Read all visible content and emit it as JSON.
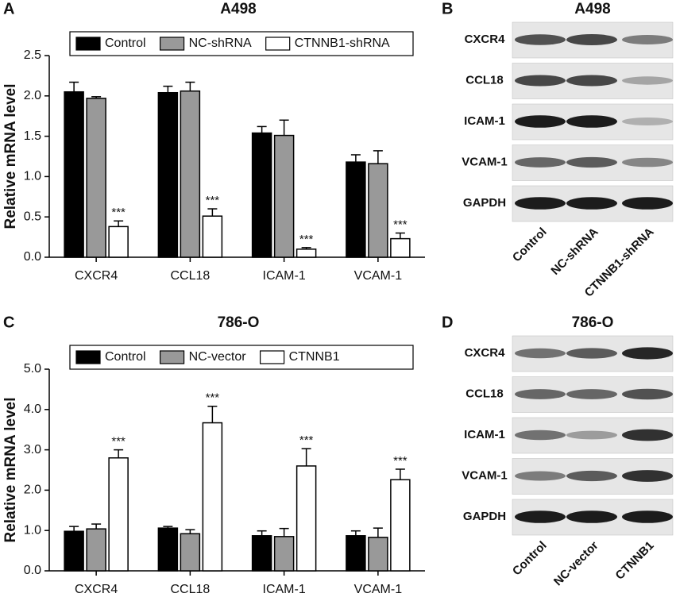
{
  "chart_data": [
    {
      "type": "bar",
      "panel": "A",
      "title": "A498",
      "y_label": "Relative mRNA level",
      "categories": [
        "CXCR4",
        "CCL18",
        "ICAM-1",
        "VCAM-1"
      ],
      "series": [
        {
          "name": "Control",
          "color": "#000000",
          "values": [
            2.05,
            2.04,
            1.54,
            1.18
          ],
          "errors": [
            0.12,
            0.08,
            0.08,
            0.09
          ]
        },
        {
          "name": "NC-shRNA",
          "color": "#999999",
          "values": [
            1.97,
            2.06,
            1.51,
            1.16
          ],
          "errors": [
            0.02,
            0.11,
            0.19,
            0.16
          ]
        },
        {
          "name": "CTNNB1-shRNA",
          "color": "#ffffff",
          "values": [
            0.38,
            0.51,
            0.1,
            0.23
          ],
          "errors": [
            0.07,
            0.09,
            0.02,
            0.07
          ],
          "annotations": [
            "***",
            "***",
            "***",
            "***"
          ]
        }
      ],
      "ylim": [
        0,
        2.5
      ],
      "yticks": [
        {
          "value": 0,
          "label": "0.0"
        },
        0.5,
        {
          "value": 1,
          "label": "1.0"
        },
        1.5,
        {
          "value": 2,
          "label": "2.0"
        },
        2.5
      ],
      "legend": "top"
    },
    {
      "type": "bar",
      "panel": "C",
      "title": "786-O",
      "y_label": "Relative mRNA level",
      "categories": [
        "CXCR4",
        "CCL18",
        "ICAM-1",
        "VCAM-1"
      ],
      "series": [
        {
          "name": "Control",
          "color": "#000000",
          "values": [
            0.98,
            1.06,
            0.87,
            0.87
          ],
          "errors": [
            0.12,
            0.04,
            0.12,
            0.12
          ]
        },
        {
          "name": "NC-vector",
          "color": "#999999",
          "values": [
            1.04,
            0.92,
            0.85,
            0.83
          ],
          "errors": [
            0.12,
            0.1,
            0.2,
            0.23
          ]
        },
        {
          "name": "CTNNB1",
          "color": "#ffffff",
          "values": [
            2.8,
            3.67,
            2.6,
            2.26
          ],
          "errors": [
            0.2,
            0.41,
            0.43,
            0.26
          ],
          "annotations": [
            "***",
            "***",
            "***",
            "***"
          ]
        }
      ],
      "ylim": [
        0,
        5
      ],
      "yticks": [
        {
          "value": 0,
          "label": "0.0"
        },
        {
          "value": 1,
          "label": "1.0"
        },
        {
          "value": 2,
          "label": "2.0"
        },
        {
          "value": 3,
          "label": "3.0"
        },
        {
          "value": 4,
          "label": "4.0"
        },
        {
          "value": 5,
          "label": "5.0"
        }
      ],
      "legend": "top"
    }
  ],
  "blots": [
    {
      "panel": "B",
      "title": "A498",
      "proteins": [
        "CXCR4",
        "CCL18",
        "ICAM-1",
        "VCAM-1",
        "GAPDH"
      ],
      "lanes": [
        "Control",
        "NC-shRNA",
        "CTNNB1-shRNA"
      ]
    },
    {
      "panel": "D",
      "title": "786-O",
      "proteins": [
        "CXCR4",
        "CCL18",
        "ICAM-1",
        "VCAM-1",
        "GAPDH"
      ],
      "lanes": [
        "Control",
        "NC-vector",
        "CTNNB1"
      ]
    }
  ]
}
